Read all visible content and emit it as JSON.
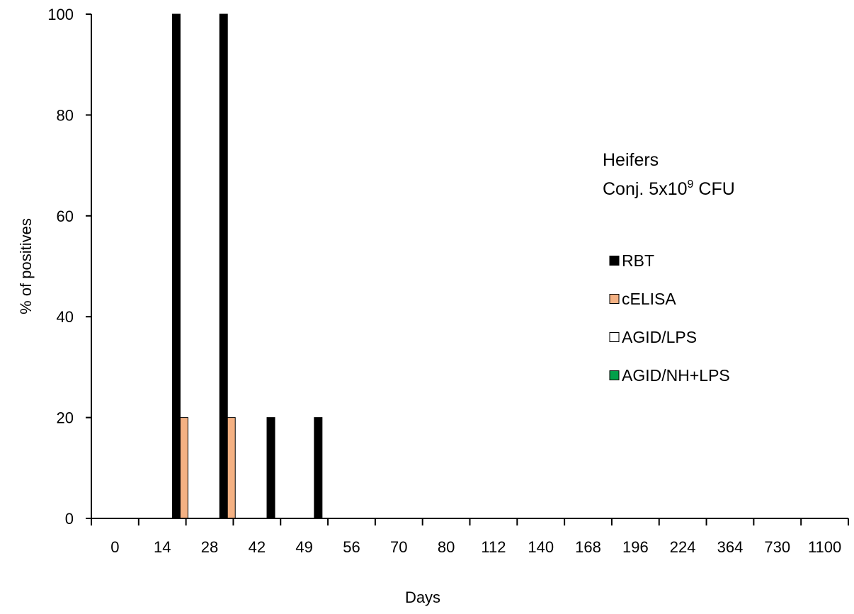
{
  "chart_data": {
    "type": "bar",
    "title": "",
    "xlabel": "Days",
    "ylabel": "% of positives",
    "ylim": [
      0,
      100
    ],
    "yticks": [
      0,
      20,
      40,
      60,
      80,
      100
    ],
    "grid": false,
    "legend_position": "right",
    "annotation": {
      "line1": "Heifers",
      "line2_prefix": "Conj. 5x10",
      "line2_sup": "9",
      "line2_suffix": " CFU"
    },
    "categories": [
      "0",
      "14",
      "28",
      "42",
      "49",
      "56",
      "70",
      "80",
      "112",
      "140",
      "168",
      "196",
      "224",
      "364",
      "730",
      "1100"
    ],
    "series": [
      {
        "name": "RBT",
        "color": "#000000",
        "values": [
          0,
          100,
          100,
          20,
          20,
          0,
          0,
          0,
          0,
          0,
          0,
          0,
          0,
          0,
          0,
          0
        ]
      },
      {
        "name": "cELISA",
        "color": "#f4b183",
        "values": [
          0,
          20,
          20,
          0,
          0,
          0,
          0,
          0,
          0,
          0,
          0,
          0,
          0,
          0,
          0,
          0
        ]
      },
      {
        "name": "AGID/LPS",
        "color": "#ffffff",
        "values": [
          0,
          0,
          0,
          0,
          0,
          0,
          0,
          0,
          0,
          0,
          0,
          0,
          0,
          0,
          0,
          0
        ]
      },
      {
        "name": "AGID/NH+LPS",
        "color": "#00a04a",
        "values": [
          0,
          0,
          0,
          0,
          0,
          0,
          0,
          0,
          0,
          0,
          0,
          0,
          0,
          0,
          0,
          0
        ]
      }
    ]
  }
}
